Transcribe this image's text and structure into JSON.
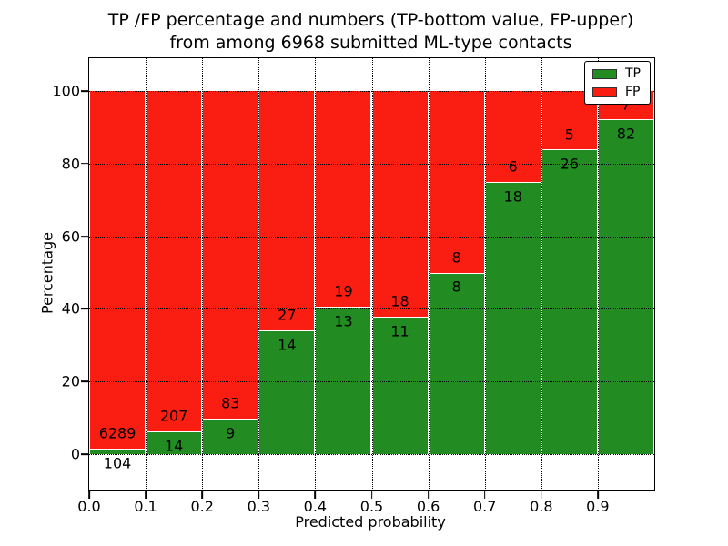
{
  "title": {
    "line1": "TP /FP percentage and numbers (TP-bottom value, FP-upper)",
    "line2": "from among 6968 submitted ML-type contacts"
  },
  "axes": {
    "xlabel": "Predicted probability",
    "ylabel": "Percentage",
    "yticks": [
      0,
      20,
      40,
      60,
      80,
      100
    ],
    "xticks": [
      "0.0",
      "0.1",
      "0.2",
      "0.3",
      "0.4",
      "0.5",
      "0.6",
      "0.7",
      "0.8",
      "0.9"
    ],
    "ylim": [
      -10,
      109
    ],
    "xlim": [
      0.0,
      1.0
    ],
    "grid_style": "dotted",
    "grid_color": "#000000"
  },
  "legend": {
    "position": "upper-right",
    "items": [
      {
        "label": "TP",
        "color": "#228b22"
      },
      {
        "label": "FP",
        "color": "#fa1d12"
      }
    ]
  },
  "chart_data": {
    "type": "bar",
    "stacked": true,
    "orientation": "vertical",
    "title": "TP /FP percentage and numbers (TP-bottom value, FP-upper) from among 6968 submitted ML-type contacts",
    "xlabel": "Predicted probability",
    "ylabel": "Percentage",
    "categories": [
      "0.0-0.1",
      "0.1-0.2",
      "0.2-0.3",
      "0.3-0.4",
      "0.4-0.5",
      "0.5-0.6",
      "0.6-0.7",
      "0.7-0.8",
      "0.8-0.9",
      "0.9-1.0"
    ],
    "bin_edges": [
      0.0,
      0.1,
      0.2,
      0.3,
      0.4,
      0.5,
      0.6,
      0.7,
      0.8,
      0.9,
      1.0
    ],
    "series": [
      {
        "name": "TP",
        "color": "#228b22",
        "counts": [
          104,
          14,
          9,
          14,
          13,
          11,
          8,
          18,
          26,
          82
        ]
      },
      {
        "name": "FP",
        "color": "#fa1d12",
        "counts": [
          6289,
          207,
          83,
          27,
          19,
          18,
          8,
          6,
          5,
          7
        ]
      }
    ],
    "tp_percent_of_bin": [
      1.63,
      6.33,
      9.78,
      34.15,
      40.63,
      37.93,
      50.0,
      75.0,
      83.87,
      92.13
    ],
    "bars_sum_to_percent": 100,
    "total_contacts": 6968,
    "ylim": [
      -10,
      109
    ],
    "yticks": [
      0,
      20,
      40,
      60,
      80,
      100
    ],
    "grid": "dotted",
    "legend_position": "upper right",
    "bar_label_note": "FP count printed above TP/FP boundary, TP count below it"
  }
}
